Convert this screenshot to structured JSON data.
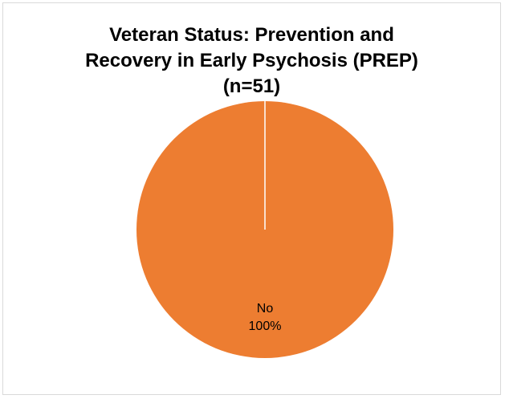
{
  "chart_data": {
    "type": "pie",
    "title_lines": [
      "Veteran Status: Prevention and",
      "Recovery in Early Psychosis (PREP)",
      "(n=51)"
    ],
    "slices": [
      {
        "name": "No",
        "value": 100,
        "label": "No",
        "percent_label": "100%",
        "color": "#ED7D31"
      }
    ],
    "legend": "none"
  }
}
